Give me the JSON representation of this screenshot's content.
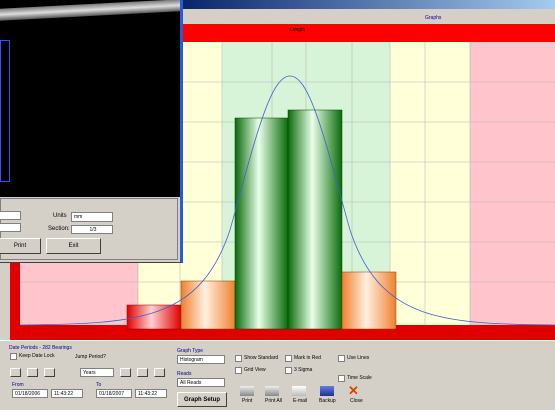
{
  "main_window": {
    "menu": "Graphs",
    "chart_header": "Length"
  },
  "image_window": {
    "units_label": "Units",
    "units_value": "mm",
    "section_label": "Section:",
    "section_value": "1/3",
    "buttons": [
      "Print",
      "Exit"
    ]
  },
  "controls": {
    "date_periods": "Date Periods - 282 Bearings",
    "keep_date_lock": "Keep Date Lock",
    "jump_period": "Jump Period?",
    "period": "Years",
    "from_label": "From",
    "from_date": "01/18/2006",
    "from_time": "11:43:22",
    "to_label": "To",
    "to_date": "01/18/2007",
    "to_time": "11:43:22",
    "graph_type_label": "Graph Type",
    "graph_type": "Histogram",
    "reads_label": "Reads",
    "reads": "All Reads",
    "graph_setup": "Graph Setup",
    "checkboxes": [
      "Show Standard",
      "Grid View",
      "Mark in Red",
      "3 Sigma",
      "Use Lines",
      "Time Scale"
    ],
    "actions": [
      "Print",
      "Print All",
      "E-mail",
      "Backup",
      "Close"
    ]
  }
}
